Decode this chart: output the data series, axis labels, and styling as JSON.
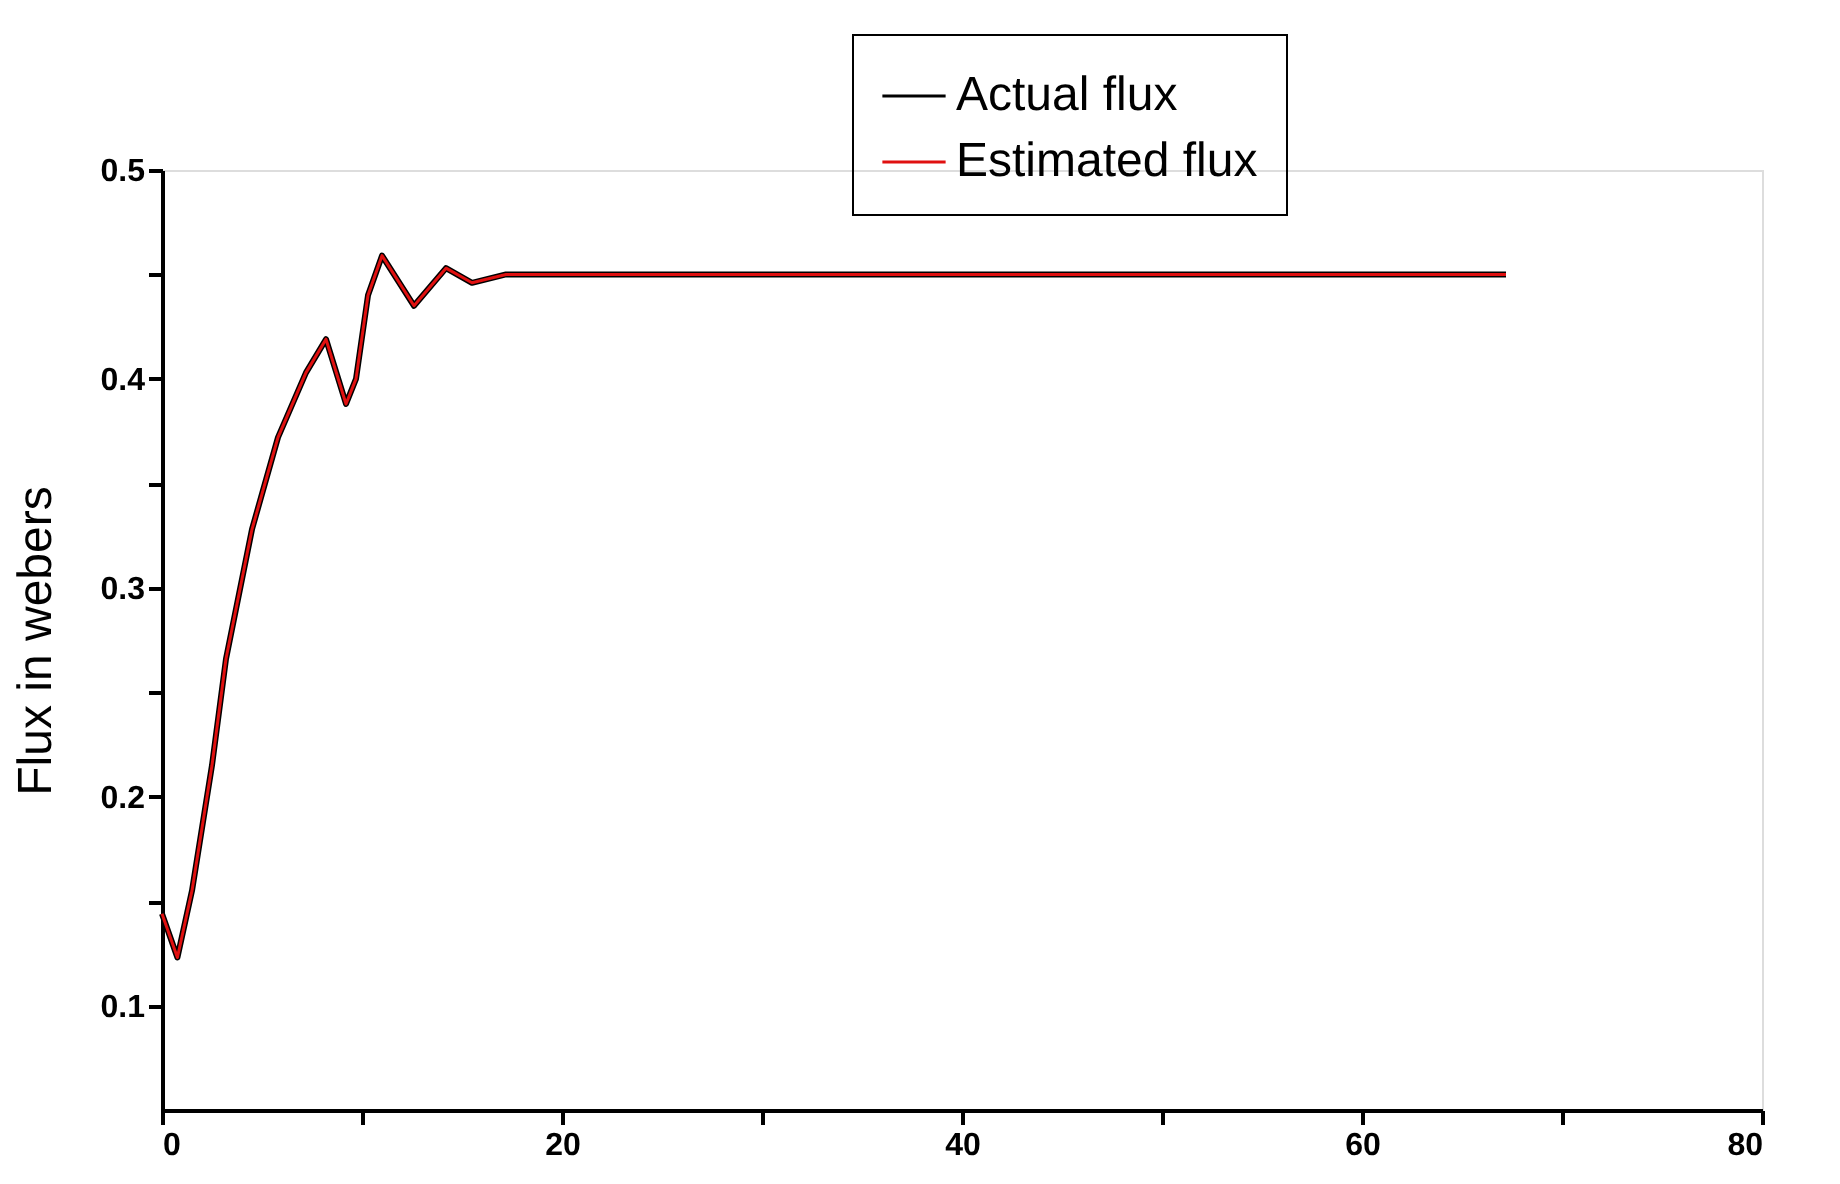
{
  "chart_data": {
    "type": "line",
    "ylabel": "Flux in webers",
    "x": [
      0,
      0.77,
      1.5,
      2,
      2.5,
      3.2,
      4.5,
      5.8,
      7.2,
      8.2,
      9.2,
      9.7,
      10.3,
      11,
      12.6,
      14.2,
      15.5,
      17.2,
      20,
      30,
      40,
      50,
      60,
      67.2
    ],
    "series": [
      {
        "name": "Actual flux",
        "color": "#000000",
        "values": [
          0.144,
          0.123,
          0.155,
          0.185,
          0.215,
          0.266,
          0.328,
          0.372,
          0.403,
          0.419,
          0.388,
          0.4,
          0.44,
          0.459,
          0.435,
          0.453,
          0.446,
          0.45,
          0.45,
          0.45,
          0.45,
          0.45,
          0.45,
          0.45
        ]
      },
      {
        "name": "Estimated flux",
        "color": "#e01010",
        "values": [
          0.144,
          0.123,
          0.155,
          0.185,
          0.215,
          0.266,
          0.328,
          0.372,
          0.403,
          0.419,
          0.388,
          0.4,
          0.44,
          0.459,
          0.435,
          0.453,
          0.446,
          0.45,
          0.45,
          0.45,
          0.45,
          0.45,
          0.45,
          0.45
        ]
      }
    ],
    "xlim": [
      0,
      80
    ],
    "xticks": [
      0,
      {
        "value": 10,
        "label": null
      },
      20,
      {
        "value": 30,
        "label": null
      },
      40,
      {
        "value": 50,
        "label": null
      },
      60,
      {
        "value": 70,
        "label": null
      },
      80
    ],
    "ylim": [
      0.05,
      0.5
    ],
    "yticks": [
      0.1,
      {
        "value": 0.15,
        "label": null
      },
      0.2,
      {
        "value": 0.25,
        "label": null
      },
      0.3,
      {
        "value": 0.35,
        "label": null
      },
      0.4,
      {
        "value": 0.45,
        "label": null
      },
      0.5
    ],
    "grid": false,
    "legend": "top right",
    "marker": "none",
    "line_style": "solid"
  }
}
